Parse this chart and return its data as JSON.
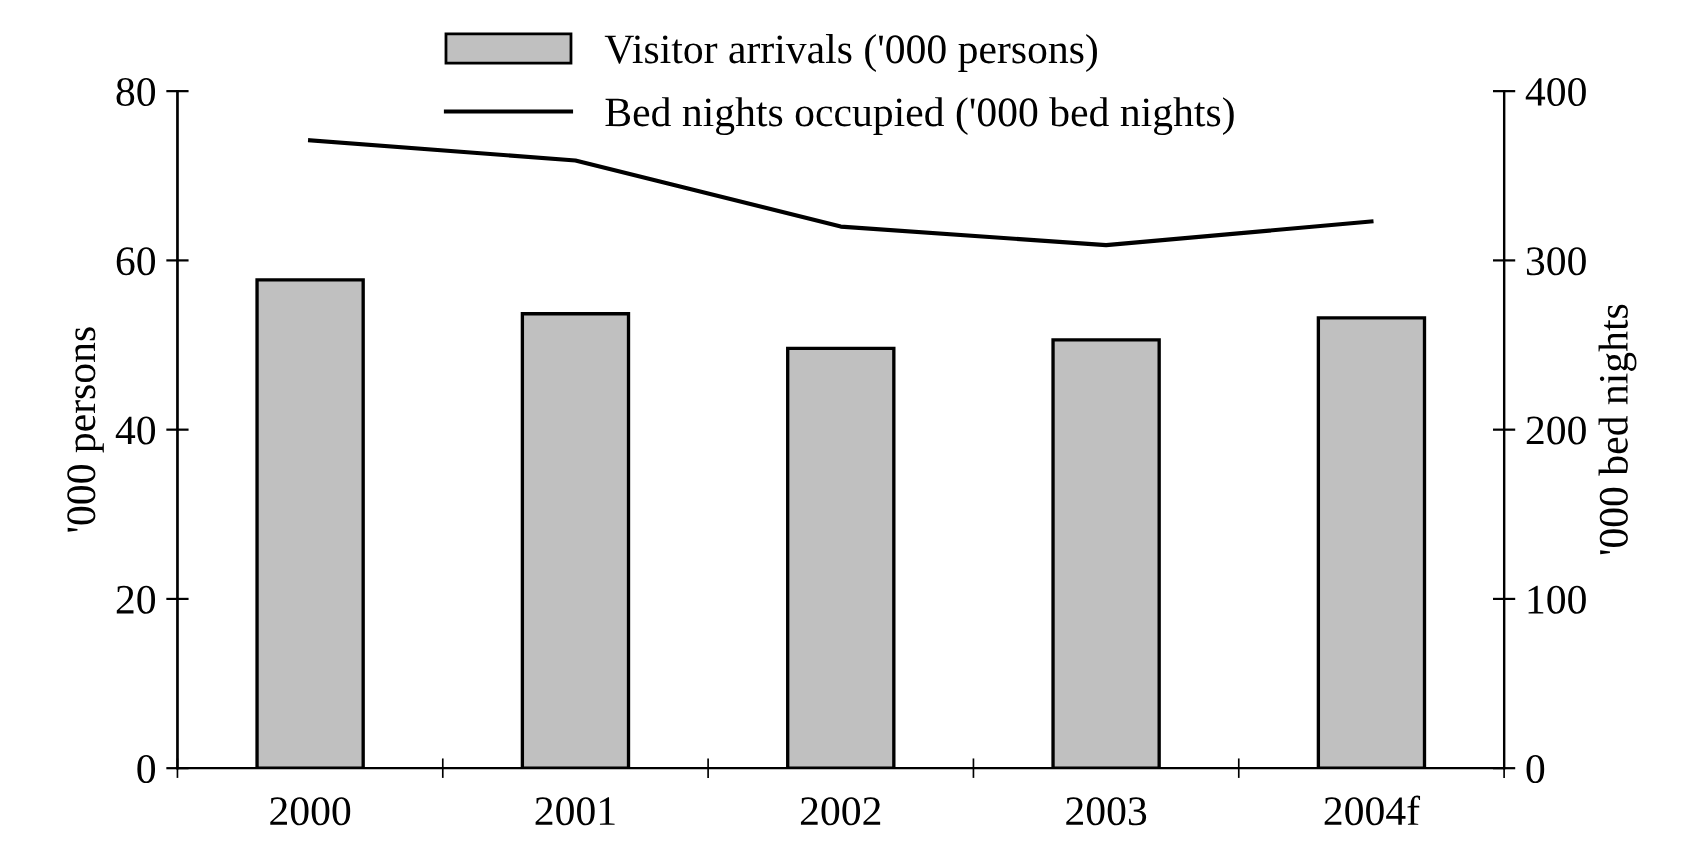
{
  "chart_data": {
    "type": "bar",
    "ylabel": "'000 persons",
    "y2label": "'000 bed nights",
    "categories": [
      "2000",
      "2001",
      "2002",
      "2003",
      "2004f"
    ],
    "series": [
      {
        "name": "Visitor arrivals ('000 persons)",
        "color": "#c0c0c0",
        "values": [
          57.7,
          53.7,
          49.6,
          50.6,
          53.2
        ]
      },
      {
        "name": "Bed nights occupied ('000 bed nights)",
        "type": "line",
        "axis": "y2",
        "color": "#000000",
        "values": [
          371,
          359,
          320,
          309,
          323
        ]
      }
    ],
    "ylim": [
      0,
      80
    ],
    "yticks": [
      0,
      20,
      40,
      60,
      80
    ],
    "y2lim": [
      0,
      400
    ],
    "y2ticks": [
      0,
      100,
      200,
      300,
      400
    ],
    "grid": false,
    "legend": "top",
    "marker": "none",
    "line_style": "solid"
  }
}
